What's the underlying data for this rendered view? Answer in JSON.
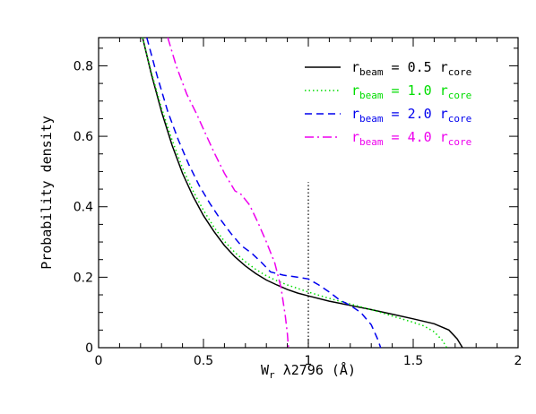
{
  "chart_data": {
    "type": "line",
    "xlabel_main": "W",
    "xlabel_sub": "r",
    "xlabel_rest": " λ2796 (Å)",
    "ylabel": "Probability density",
    "xlim": [
      0,
      2
    ],
    "ylim": [
      0,
      0.88
    ],
    "x_ticks": [
      0,
      0.5,
      1,
      1.5,
      2
    ],
    "x_tick_labels": [
      "0",
      "0.5",
      "1",
      "1.5",
      "2"
    ],
    "y_ticks": [
      0,
      0.2,
      0.4,
      0.6,
      0.8
    ],
    "y_tick_labels": [
      "0",
      "0.2",
      "0.4",
      "0.6",
      "0.8"
    ],
    "reference_line": {
      "x": 1,
      "y_top": 0.47,
      "style": "dotted",
      "color": "#000000"
    },
    "legend_position": "top-right",
    "series": [
      {
        "name_parts": [
          "r",
          "beam",
          " = 0.5 r",
          "core"
        ],
        "color": "#000000",
        "dash": "solid",
        "points": [
          [
            0.21,
            0.88
          ],
          [
            0.25,
            0.78
          ],
          [
            0.3,
            0.67
          ],
          [
            0.35,
            0.575
          ],
          [
            0.4,
            0.495
          ],
          [
            0.45,
            0.43
          ],
          [
            0.5,
            0.375
          ],
          [
            0.55,
            0.33
          ],
          [
            0.6,
            0.29
          ],
          [
            0.65,
            0.258
          ],
          [
            0.7,
            0.232
          ],
          [
            0.75,
            0.21
          ],
          [
            0.8,
            0.192
          ],
          [
            0.85,
            0.178
          ],
          [
            0.9,
            0.165
          ],
          [
            0.95,
            0.155
          ],
          [
            1.0,
            0.147
          ],
          [
            1.1,
            0.132
          ],
          [
            1.2,
            0.12
          ],
          [
            1.3,
            0.108
          ],
          [
            1.4,
            0.095
          ],
          [
            1.5,
            0.082
          ],
          [
            1.6,
            0.068
          ],
          [
            1.67,
            0.05
          ],
          [
            1.71,
            0.025
          ],
          [
            1.735,
            0.0
          ]
        ]
      },
      {
        "name_parts": [
          "r",
          "beam",
          " = 1.0 r",
          "core"
        ],
        "color": "#00dd00",
        "dash": "dotted",
        "points": [
          [
            0.21,
            0.88
          ],
          [
            0.25,
            0.785
          ],
          [
            0.3,
            0.68
          ],
          [
            0.35,
            0.59
          ],
          [
            0.4,
            0.51
          ],
          [
            0.45,
            0.445
          ],
          [
            0.5,
            0.39
          ],
          [
            0.55,
            0.342
          ],
          [
            0.6,
            0.302
          ],
          [
            0.65,
            0.27
          ],
          [
            0.7,
            0.244
          ],
          [
            0.75,
            0.222
          ],
          [
            0.8,
            0.204
          ],
          [
            0.85,
            0.19
          ],
          [
            0.9,
            0.178
          ],
          [
            0.95,
            0.168
          ],
          [
            1.0,
            0.158
          ],
          [
            1.1,
            0.14
          ],
          [
            1.2,
            0.124
          ],
          [
            1.3,
            0.108
          ],
          [
            1.4,
            0.09
          ],
          [
            1.5,
            0.072
          ],
          [
            1.55,
            0.062
          ],
          [
            1.6,
            0.045
          ],
          [
            1.64,
            0.02
          ],
          [
            1.66,
            0.0
          ]
        ]
      },
      {
        "name_parts": [
          "r",
          "beam",
          " = 2.0 r",
          "core"
        ],
        "color": "#0000ee",
        "dash": "dashed",
        "points": [
          [
            0.23,
            0.88
          ],
          [
            0.28,
            0.77
          ],
          [
            0.33,
            0.67
          ],
          [
            0.38,
            0.59
          ],
          [
            0.43,
            0.52
          ],
          [
            0.48,
            0.46
          ],
          [
            0.53,
            0.41
          ],
          [
            0.58,
            0.365
          ],
          [
            0.63,
            0.325
          ],
          [
            0.68,
            0.29
          ],
          [
            0.73,
            0.268
          ],
          [
            0.78,
            0.24
          ],
          [
            0.82,
            0.215
          ],
          [
            0.88,
            0.206
          ],
          [
            0.95,
            0.2
          ],
          [
            1.0,
            0.195
          ],
          [
            1.05,
            0.178
          ],
          [
            1.1,
            0.158
          ],
          [
            1.15,
            0.135
          ],
          [
            1.2,
            0.12
          ],
          [
            1.25,
            0.1
          ],
          [
            1.3,
            0.065
          ],
          [
            1.33,
            0.025
          ],
          [
            1.345,
            0.0
          ]
        ]
      },
      {
        "name_parts": [
          "r",
          "beam",
          " = 4.0 r",
          "core"
        ],
        "color": "#ee00ee",
        "dash": "dashdot",
        "points": [
          [
            0.33,
            0.88
          ],
          [
            0.37,
            0.8
          ],
          [
            0.42,
            0.72
          ],
          [
            0.47,
            0.66
          ],
          [
            0.5,
            0.62
          ],
          [
            0.55,
            0.555
          ],
          [
            0.6,
            0.495
          ],
          [
            0.65,
            0.445
          ],
          [
            0.68,
            0.435
          ],
          [
            0.72,
            0.405
          ],
          [
            0.76,
            0.355
          ],
          [
            0.8,
            0.3
          ],
          [
            0.84,
            0.24
          ],
          [
            0.87,
            0.17
          ],
          [
            0.89,
            0.09
          ],
          [
            0.9,
            0.04
          ],
          [
            0.905,
            0.0
          ]
        ]
      }
    ]
  }
}
